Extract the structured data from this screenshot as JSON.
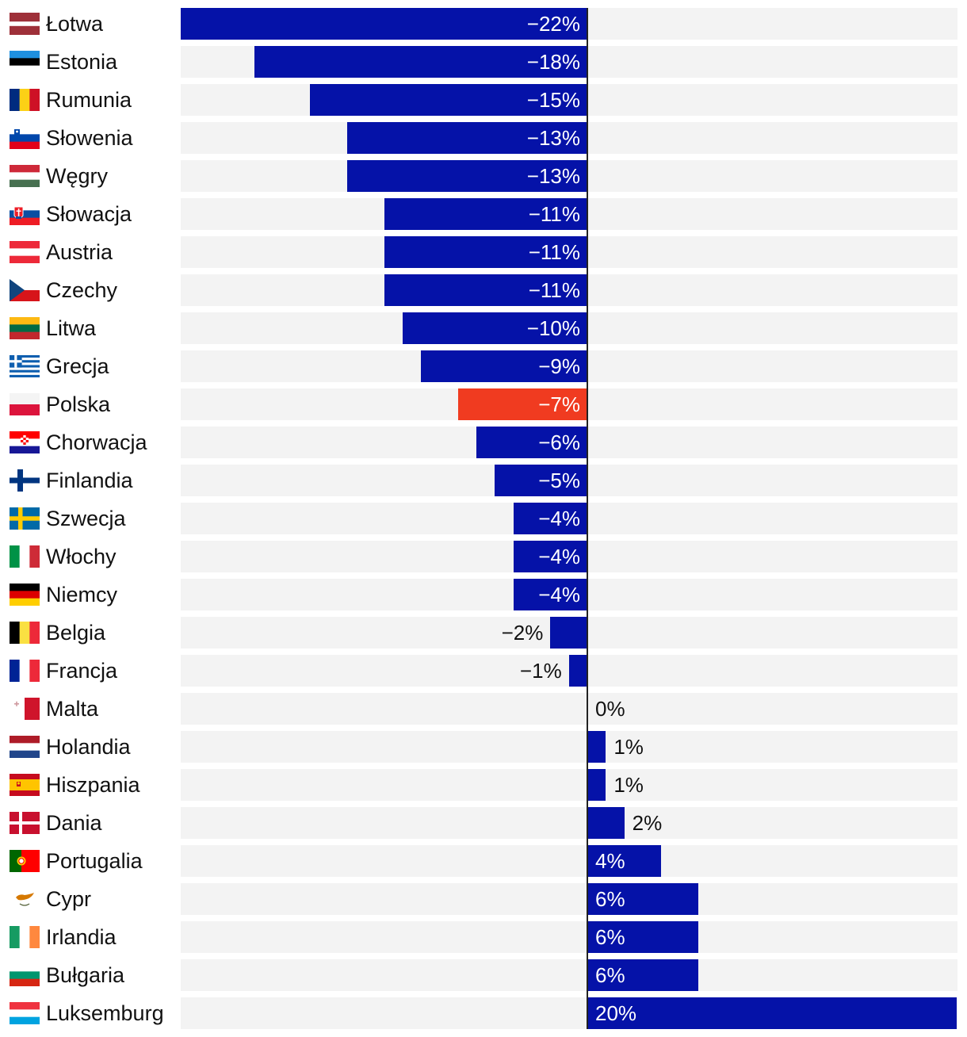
{
  "chart_data": {
    "type": "bar",
    "orientation": "horizontal",
    "title": "",
    "xlabel": "",
    "ylabel": "",
    "xlim": [
      -22,
      20
    ],
    "colors": {
      "default": "#0512a8",
      "highlight": "#f03b20",
      "track": "#f3f3f3",
      "label_inside": "#ffffff",
      "label_outside": "#111111"
    },
    "categories": [
      "Łotwa",
      "Estonia",
      "Rumunia",
      "Słowenia",
      "Węgry",
      "Słowacja",
      "Austria",
      "Czechy",
      "Litwa",
      "Grecja",
      "Polska",
      "Chorwacja",
      "Finlandia",
      "Szwecja",
      "Włochy",
      "Niemcy",
      "Belgia",
      "Francja",
      "Malta",
      "Holandia",
      "Hiszpania",
      "Dania",
      "Portugalia",
      "Cypr",
      "Irlandia",
      "Bułgaria",
      "Luksemburg"
    ],
    "values": [
      -22,
      -18,
      -15,
      -13,
      -13,
      -11,
      -11,
      -11,
      -10,
      -9,
      -7,
      -6,
      -5,
      -4,
      -4,
      -4,
      -2,
      -1,
      0,
      1,
      1,
      2,
      4,
      6,
      6,
      6,
      20
    ],
    "labels": [
      "−22%",
      "−18%",
      "−15%",
      "−13%",
      "−13%",
      "−11%",
      "−11%",
      "−11%",
      "−10%",
      "−9%",
      "−7%",
      "−6%",
      "−5%",
      "−4%",
      "−4%",
      "−4%",
      "−2%",
      "−1%",
      "0%",
      "1%",
      "1%",
      "2%",
      "4%",
      "6%",
      "6%",
      "6%",
      "20%"
    ],
    "highlight": [
      "Polska"
    ],
    "flags": [
      "flag-latvia-icon",
      "flag-estonia-icon",
      "flag-romania-icon",
      "flag-slovenia-icon",
      "flag-hungary-icon",
      "flag-slovakia-icon",
      "flag-austria-icon",
      "flag-czechia-icon",
      "flag-lithuania-icon",
      "flag-greece-icon",
      "flag-poland-icon",
      "flag-croatia-icon",
      "flag-finland-icon",
      "flag-sweden-icon",
      "flag-italy-icon",
      "flag-germany-icon",
      "flag-belgium-icon",
      "flag-france-icon",
      "flag-malta-icon",
      "flag-netherlands-icon",
      "flag-spain-icon",
      "flag-denmark-icon",
      "flag-portugal-icon",
      "flag-cyprus-icon",
      "flag-ireland-icon",
      "flag-bulgaria-icon",
      "flag-luxembourg-icon"
    ]
  }
}
